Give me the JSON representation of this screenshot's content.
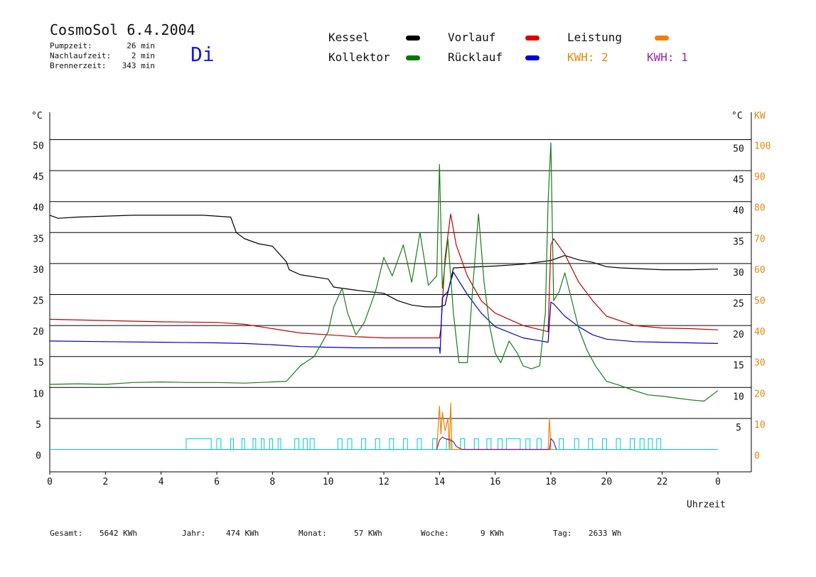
{
  "header": {
    "title": "CosmoSol 6.4.2004",
    "day": "Di",
    "info": [
      {
        "label": "Pumpzeit:",
        "value": "26 min"
      },
      {
        "label": "Nachlaufzeit:",
        "value": "2 min"
      },
      {
        "label": "Brennerzeit:",
        "value": "343 min"
      }
    ]
  },
  "legend": [
    {
      "label": "Kessel",
      "color": "#000000"
    },
    {
      "label": "Kollektor",
      "color": "#007a00"
    },
    {
      "label": "Vorlauf",
      "color": "#e00000"
    },
    {
      "label": "Rücklauf",
      "color": "#0000e0"
    },
    {
      "label": "Leistung",
      "color": "#f08000"
    }
  ],
  "kwh_labels": [
    {
      "label": "KWH: 2",
      "color": "#e08a10"
    },
    {
      "label": "KWH: 1",
      "color": "#9a2aa0"
    }
  ],
  "footer": [
    {
      "label": "Gesamt:",
      "value": "5642 KWh"
    },
    {
      "label": "Jahr:",
      "value": "474 KWh"
    },
    {
      "label": "Monat:",
      "value": "57 KWh"
    },
    {
      "label": "Woche:",
      "value": "9 KWh"
    },
    {
      "label": "Tag:",
      "value": "2633 Wh"
    }
  ],
  "chart_data": {
    "type": "line",
    "xlabel": "Uhrzeit",
    "x_ticks": [
      "0",
      "2",
      "4",
      "6",
      "8",
      "10",
      "12",
      "14",
      "16",
      "18",
      "20",
      "22",
      "0"
    ],
    "xlim": [
      0,
      24
    ],
    "ylabel_left": "°C",
    "ylabel_right_temp": "°C",
    "ylabel_right_power": "KW",
    "ylim": [
      -3.5,
      55
    ],
    "y_ticks": [
      0,
      5,
      10,
      15,
      20,
      25,
      30,
      35,
      40,
      45,
      50
    ],
    "y2_ticks": [
      0,
      10,
      20,
      30,
      40,
      50,
      60,
      70,
      80,
      90,
      100
    ],
    "grid": true,
    "series": [
      {
        "name": "Kessel",
        "color": "#000000",
        "x": [
          0,
          0.3,
          1,
          3,
          5.5,
          6.5,
          6.7,
          7,
          7.5,
          8,
          8.5,
          8.6,
          9,
          10,
          10.2,
          11,
          12,
          12.5,
          13,
          13.5,
          13.9,
          14,
          14.2,
          14.5,
          15,
          16,
          17,
          18,
          18.5,
          19,
          19.5,
          20,
          20.5,
          21,
          22,
          23,
          24
        ],
        "y": [
          37.8,
          37.3,
          37.5,
          37.8,
          37.8,
          37.5,
          35,
          34,
          33.2,
          32.8,
          30.3,
          29,
          28.2,
          27.5,
          26.2,
          25.7,
          25.2,
          24,
          23.3,
          23,
          23,
          23,
          23.3,
          29.3,
          29.4,
          29.6,
          29.9,
          30.5,
          31.3,
          30.6,
          30.2,
          29.5,
          29.3,
          29.2,
          29,
          29,
          29.1
        ]
      },
      {
        "name": "Vorlauf",
        "color": "#c00000",
        "x": [
          0,
          2,
          4,
          6,
          7,
          8,
          9,
          10,
          11,
          12,
          13,
          14,
          14.05,
          14.2,
          14.4,
          14.6,
          15,
          15.5,
          16,
          17,
          17.9,
          18,
          18.1,
          18.5,
          19,
          19.5,
          20,
          21,
          22,
          23,
          24
        ],
        "y": [
          21,
          20.8,
          20.6,
          20.5,
          20.2,
          19.5,
          18.8,
          18.5,
          18.2,
          18,
          18,
          18,
          19.5,
          31,
          38,
          33,
          28,
          24,
          22,
          20,
          19,
          33,
          34,
          31.5,
          27,
          24,
          21.5,
          20,
          19.6,
          19.5,
          19.3
        ]
      },
      {
        "name": "Rücklauf",
        "color": "#0000c0",
        "x": [
          0,
          2,
          4,
          6,
          7,
          8,
          9,
          10,
          11,
          12,
          13,
          14,
          14.02,
          14.1,
          14.3,
          14.5,
          15,
          15.5,
          16,
          17,
          17.9,
          18,
          18.1,
          18.5,
          19,
          19.5,
          20,
          21,
          22,
          23,
          24
        ],
        "y": [
          17.5,
          17.4,
          17.3,
          17.2,
          17.1,
          16.9,
          16.6,
          16.5,
          16.4,
          16.4,
          16.4,
          16.4,
          15.5,
          24.5,
          25.5,
          28.6,
          25,
          22,
          19.8,
          18,
          17.3,
          23.8,
          23.5,
          21.5,
          19.8,
          18.5,
          17.8,
          17.4,
          17.3,
          17.2,
          17.1
        ]
      },
      {
        "name": "Kollektor",
        "color": "#1a7a1a",
        "x": [
          0,
          1,
          2,
          3,
          4,
          5,
          6,
          7,
          7.5,
          8,
          8.5,
          9,
          9.5,
          10,
          10.2,
          10.5,
          10.7,
          11,
          11.3,
          11.7,
          12,
          12.3,
          12.7,
          13,
          13.3,
          13.6,
          13.9,
          14,
          14.1,
          14.3,
          14.5,
          14.7,
          15,
          15.2,
          15.4,
          15.6,
          15.8,
          16,
          16.2,
          16.5,
          16.8,
          17,
          17.3,
          17.6,
          17.8,
          17.9,
          18,
          18.1,
          18.3,
          18.5,
          18.7,
          19,
          19.3,
          19.6,
          20,
          20.5,
          21,
          21.5,
          22,
          22.5,
          23,
          23.5,
          24
        ],
        "y": [
          10.5,
          10.6,
          10.5,
          10.8,
          10.9,
          10.8,
          10.8,
          10.7,
          10.8,
          10.9,
          11,
          13.5,
          15,
          19,
          23,
          26,
          22,
          18.5,
          20.5,
          25.5,
          31,
          28,
          33,
          27,
          35,
          26.5,
          28,
          46,
          26,
          34,
          22,
          14,
          14,
          26.5,
          38,
          27,
          20,
          15.5,
          14,
          17.5,
          15.5,
          13.5,
          13,
          13.5,
          22,
          40,
          49.5,
          24,
          25.5,
          28.5,
          25,
          19.5,
          16,
          13.5,
          11,
          10.3,
          9.5,
          8.8,
          8.6,
          8.3,
          8,
          7.8,
          9.5
        ]
      }
    ],
    "power": {
      "name": "Leistung",
      "color": "#f08000",
      "x": [
        13.9,
        14,
        14.05,
        14.1,
        14.2,
        14.3,
        14.35,
        14.4,
        14.45,
        14.5,
        17.9,
        17.95,
        18,
        18.05,
        18.1
      ],
      "y": [
        0,
        14,
        5,
        12,
        6,
        10,
        0,
        15,
        0,
        0,
        0,
        10,
        0,
        0,
        0
      ]
    },
    "kwh1": {
      "name": "KWH: 1",
      "color": "#7a1a8a",
      "x": [
        13.9,
        14,
        14.1,
        14.2,
        14.4,
        14.5,
        14.6,
        14.8,
        17.95,
        18,
        18.1,
        18.2
      ],
      "y": [
        0,
        3,
        4,
        3.5,
        3,
        2.5,
        1,
        0,
        0,
        3.5,
        2.5,
        0
      ]
    },
    "pump_blocks": {
      "color": "#00cccc",
      "intervals": [
        [
          4.9,
          5.8
        ],
        [
          6,
          6.15
        ],
        [
          6.5,
          6.6
        ],
        [
          6.9,
          7
        ],
        [
          7.3,
          7.4
        ],
        [
          7.6,
          7.7
        ],
        [
          7.9,
          8
        ],
        [
          8.2,
          8.3
        ],
        [
          8.8,
          8.95
        ],
        [
          9.1,
          9.25
        ],
        [
          9.35,
          9.5
        ],
        [
          10.35,
          10.5
        ],
        [
          10.7,
          10.85
        ],
        [
          11.2,
          11.35
        ],
        [
          11.7,
          11.85
        ],
        [
          12.2,
          12.35
        ],
        [
          12.7,
          12.85
        ],
        [
          13.2,
          13.35
        ],
        [
          13.75,
          13.9
        ],
        [
          14.25,
          14.4
        ],
        [
          14.75,
          14.9
        ],
        [
          15.25,
          15.4
        ],
        [
          15.7,
          15.85
        ],
        [
          16.1,
          16.25
        ],
        [
          16.4,
          16.9
        ],
        [
          17.1,
          17.25
        ],
        [
          17.5,
          17.65
        ],
        [
          18.3,
          18.45
        ],
        [
          18.85,
          19
        ],
        [
          19.35,
          19.5
        ],
        [
          19.85,
          20
        ],
        [
          20.35,
          20.5
        ],
        [
          20.85,
          21
        ],
        [
          21.2,
          21.35
        ],
        [
          21.5,
          21.65
        ],
        [
          21.8,
          21.95
        ]
      ]
    }
  }
}
